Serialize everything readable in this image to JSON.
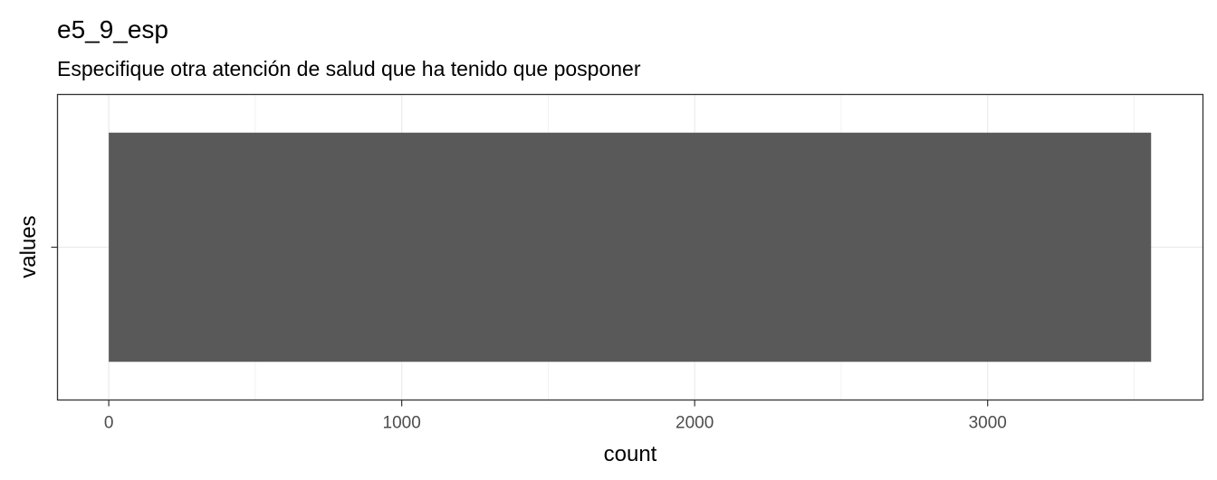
{
  "chart_data": {
    "type": "bar",
    "orientation": "horizontal",
    "title": "e5_9_esp",
    "subtitle": "Especifique otra atención de salud que ha tenido que posponer",
    "xlabel": "count",
    "ylabel": "values",
    "categories": [
      ""
    ],
    "values": [
      3558
    ],
    "xlim": [
      -175,
      3735
    ],
    "x_ticks": [
      0,
      1000,
      2000,
      3000
    ],
    "x_tick_labels": [
      "0",
      "1000",
      "2000",
      "3000"
    ],
    "grid": true,
    "bar_color": "#595959",
    "legend": "none"
  }
}
